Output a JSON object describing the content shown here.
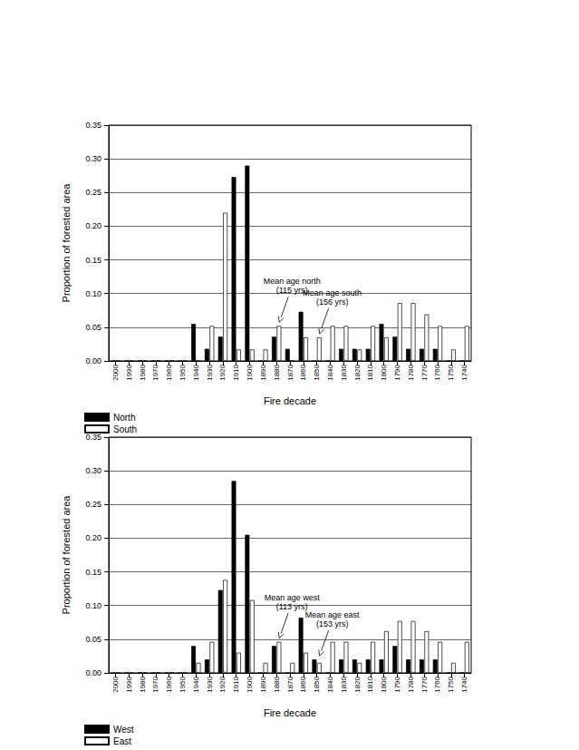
{
  "chart_data": [
    {
      "type": "bar",
      "x_label": "Fire decade",
      "y_label": "Proportion of forested area",
      "categories": [
        "2000",
        "1990",
        "1980",
        "1970",
        "1960",
        "1950",
        "1940",
        "1930",
        "1920",
        "1910",
        "1900",
        "1890",
        "1880",
        "1870",
        "1860",
        "1850",
        "1840",
        "1830",
        "1820",
        "1810",
        "1800",
        "1790",
        "1780",
        "1770",
        "1760",
        "1750",
        "1740"
      ],
      "series": [
        {
          "name": "North",
          "color": "#000000",
          "values": [
            0,
            0,
            0,
            0,
            0,
            0,
            0.055,
            0.018,
            0.036,
            0.273,
            0.29,
            0,
            0.036,
            0.018,
            0.073,
            0,
            0,
            0.018,
            0.018,
            0.018,
            0.055,
            0.036,
            0.018,
            0.018,
            0.018,
            0,
            0
          ]
        },
        {
          "name": "South",
          "color": "#ffffff",
          "values": [
            0,
            0,
            0,
            0,
            0,
            0,
            0,
            0.052,
            0.22,
            0.017,
            0.017,
            0.017,
            0.052,
            0,
            0.035,
            0.035,
            0.052,
            0.052,
            0.017,
            0.052,
            0.035,
            0.086,
            0.086,
            0.069,
            0.052,
            0.017,
            0.052
          ]
        }
      ],
      "ylim": [
        0,
        0.35
      ],
      "yticks": [
        {
          "value": 0,
          "label": "0.00"
        },
        {
          "value": 0.05,
          "label": "0.05"
        },
        {
          "value": 0.1,
          "label": "0.10"
        },
        {
          "value": 0.15,
          "label": "0.15"
        },
        {
          "value": 0.2,
          "label": "0.20"
        },
        {
          "value": 0.25,
          "label": "0.25"
        },
        {
          "value": 0.3,
          "label": "0.30"
        },
        {
          "value": 0.35,
          "label": "0.35"
        }
      ],
      "grid": true,
      "legend": "bottom left",
      "annotations": [
        {
          "text": "Mean age north\n(115 yrs)",
          "x": "1880"
        },
        {
          "text": "Mean age south\n(156 yrs)",
          "x": "1850"
        }
      ]
    },
    {
      "type": "bar",
      "x_label": "Fire decade",
      "y_label": "Proportion of forested area",
      "categories": [
        "2000",
        "1990",
        "1980",
        "1970",
        "1960",
        "1950",
        "1940",
        "1930",
        "1920",
        "1910",
        "1900",
        "1890",
        "1880",
        "1870",
        "1860",
        "1850",
        "1840",
        "1830",
        "1820",
        "1810",
        "1800",
        "1790",
        "1780",
        "1770",
        "1760",
        "1750",
        "1740"
      ],
      "series": [
        {
          "name": "West",
          "color": "#000000",
          "values": [
            0,
            0,
            0,
            0,
            0,
            0,
            0.04,
            0.02,
            0.123,
            0.285,
            0.205,
            0,
            0.04,
            0,
            0.082,
            0.02,
            0,
            0.02,
            0.02,
            0.02,
            0.02,
            0.04,
            0.02,
            0.02,
            0.02,
            0,
            0
          ]
        },
        {
          "name": "East",
          "color": "#ffffff",
          "values": [
            0,
            0,
            0,
            0,
            0,
            0,
            0.015,
            0.046,
            0.138,
            0.03,
            0.108,
            0.015,
            0.046,
            0.015,
            0.03,
            0.015,
            0.046,
            0.046,
            0.015,
            0.046,
            0.062,
            0.077,
            0.077,
            0.062,
            0.046,
            0.015,
            0.046
          ]
        }
      ],
      "ylim": [
        0,
        0.35
      ],
      "yticks": [
        {
          "value": 0,
          "label": "0.00"
        },
        {
          "value": 0.05,
          "label": "0.05"
        },
        {
          "value": 0.1,
          "label": "0.10"
        },
        {
          "value": 0.15,
          "label": "0.15"
        },
        {
          "value": 0.2,
          "label": "0.20"
        },
        {
          "value": 0.25,
          "label": "0.25"
        },
        {
          "value": 0.3,
          "label": "0.30"
        },
        {
          "value": 0.35,
          "label": "0.35"
        }
      ],
      "grid": true,
      "legend": "bottom left",
      "annotations": [
        {
          "text": "Mean age west\n(113 yrs)",
          "x": "1880"
        },
        {
          "text": "Mean age east\n(153 yrs)",
          "x": "1850"
        }
      ]
    }
  ]
}
